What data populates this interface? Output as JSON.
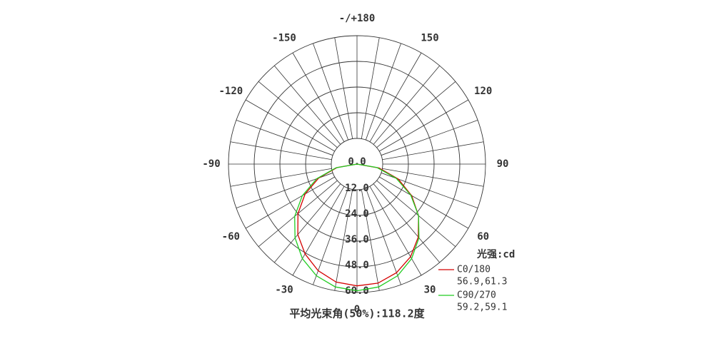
{
  "chart_data": {
    "type": "polar",
    "x": [
      -90,
      -80,
      -70,
      -60,
      -50,
      -40,
      -30,
      -20,
      -10,
      0,
      10,
      20,
      30,
      40,
      50,
      60,
      70,
      80,
      90
    ],
    "series": [
      {
        "name": "C0/180",
        "color": "#d40000",
        "stats": "56.9,61.3",
        "values": [
          0,
          9.5,
          19,
          28,
          36,
          43,
          48.5,
          53,
          56,
          56.9,
          56.5,
          54,
          50,
          44.5,
          37.5,
          29.5,
          20.5,
          10.5,
          0
        ]
      },
      {
        "name": "C90/270",
        "color": "#22cc22",
        "stats": "59.2,59.1",
        "values": [
          0,
          10,
          20,
          29.5,
          38,
          45,
          51,
          55.5,
          58.3,
          59.2,
          58.3,
          55.5,
          51,
          45,
          37.5,
          29,
          19.5,
          9.5,
          0
        ]
      }
    ],
    "rlim": [
      0,
      60
    ],
    "rticks": [
      {
        "value": 0,
        "label": "0.0"
      },
      {
        "value": 12,
        "label": "12.0"
      },
      {
        "value": 24,
        "label": "24.0"
      },
      {
        "value": 36,
        "label": "36.0"
      },
      {
        "value": 48,
        "label": "48.0"
      },
      {
        "value": 60,
        "label": "60.0"
      }
    ],
    "angle_ticks": [
      {
        "value": 180,
        "label": "-/+180"
      },
      150,
      120,
      90,
      60,
      30,
      0,
      -30,
      -60,
      -90,
      -120,
      -150
    ],
    "legend_title": "光强:cd",
    "footer": "平均光束角(50%):118.2度"
  }
}
